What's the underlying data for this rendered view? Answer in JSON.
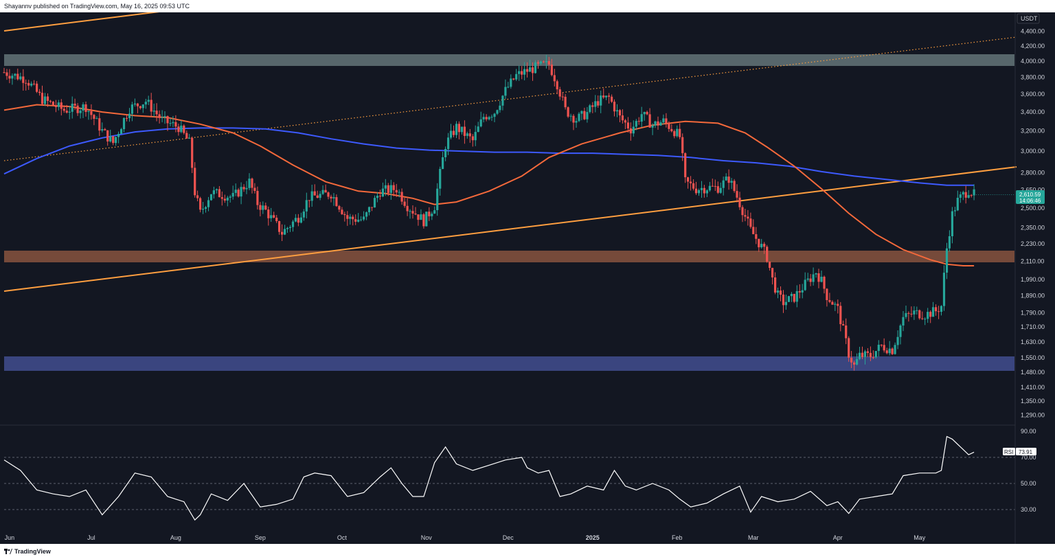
{
  "header": {
    "publisher_text": "Shayannv published on TradingView.com, May 16, 2025 09:53 UTC"
  },
  "footer": {
    "brand": "TradingView"
  },
  "colors": {
    "background": "#131722",
    "up_candle": "#26a69a",
    "down_candle": "#ef5350",
    "ma_100": "#f4693b",
    "ma_200": "#3d5afe",
    "trendline": "#ff9f40",
    "resistance_zone": "#8fa7a7",
    "support_zone_orange": "#c8754f",
    "support_zone_blue": "#4c5aa6",
    "rsi_line": "#ffffff",
    "price_badge": "#26a69a"
  },
  "chart_data": {
    "type": "candlestick",
    "symbol_currency": "USDT",
    "x_ticks": [
      "Jun",
      "Jul",
      "Aug",
      "Sep",
      "Oct",
      "Nov",
      "Dec",
      "2025",
      "Feb",
      "Mar",
      "Apr",
      "May"
    ],
    "x_range_days": [
      0,
      360
    ],
    "x_tick_days": [
      2,
      32,
      63,
      94,
      124,
      155,
      185,
      216,
      247,
      275,
      306,
      336
    ],
    "y_scale": "log",
    "y_ticks": [
      "4,400.00",
      "4,200.00",
      "4,000.00",
      "3,800.00",
      "3,600.00",
      "3,400.00",
      "3,200.00",
      "3,000.00",
      "2,800.00",
      "2,650.00",
      "2,500.00",
      "2,350.00",
      "2,230.00",
      "2,110.00",
      "1,990.00",
      "1,890.00",
      "1,790.00",
      "1,710.00",
      "1,630.00",
      "1,550.00",
      "1,480.00",
      "1,410.00",
      "1,350.00",
      "1,290.00"
    ],
    "current_price": "2,610.59",
    "countdown": "14:06:46",
    "close_path": [
      [
        0,
        3860
      ],
      [
        8,
        3780
      ],
      [
        14,
        3540
      ],
      [
        22,
        3420
      ],
      [
        30,
        3460
      ],
      [
        36,
        3200
      ],
      [
        40,
        3080
      ],
      [
        46,
        3440
      ],
      [
        52,
        3520
      ],
      [
        58,
        3310
      ],
      [
        64,
        3240
      ],
      [
        68,
        3080
      ],
      [
        70,
        2630
      ],
      [
        72,
        2460
      ],
      [
        76,
        2630
      ],
      [
        84,
        2590
      ],
      [
        90,
        2720
      ],
      [
        93,
        2540
      ],
      [
        96,
        2480
      ],
      [
        102,
        2310
      ],
      [
        108,
        2430
      ],
      [
        112,
        2590
      ],
      [
        120,
        2620
      ],
      [
        126,
        2420
      ],
      [
        132,
        2410
      ],
      [
        138,
        2640
      ],
      [
        144,
        2660
      ],
      [
        148,
        2520
      ],
      [
        154,
        2400
      ],
      [
        158,
        2520
      ],
      [
        162,
        3060
      ],
      [
        166,
        3240
      ],
      [
        172,
        3100
      ],
      [
        176,
        3350
      ],
      [
        180,
        3400
      ],
      [
        184,
        3640
      ],
      [
        188,
        3820
      ],
      [
        192,
        3880
      ],
      [
        196,
        3930
      ],
      [
        200,
        3960
      ],
      [
        203,
        3720
      ],
      [
        206,
        3420
      ],
      [
        210,
        3320
      ],
      [
        214,
        3390
      ],
      [
        218,
        3520
      ],
      [
        222,
        3560
      ],
      [
        226,
        3340
      ],
      [
        230,
        3220
      ],
      [
        232,
        3290
      ],
      [
        234,
        3380
      ],
      [
        238,
        3260
      ],
      [
        242,
        3300
      ],
      [
        246,
        3200
      ],
      [
        248,
        3140
      ],
      [
        250,
        2720
      ],
      [
        254,
        2660
      ],
      [
        258,
        2670
      ],
      [
        262,
        2670
      ],
      [
        266,
        2750
      ],
      [
        270,
        2540
      ],
      [
        274,
        2330
      ],
      [
        276,
        2270
      ],
      [
        278,
        2210
      ],
      [
        280,
        2140
      ],
      [
        282,
        1990
      ],
      [
        284,
        1890
      ],
      [
        286,
        1850
      ],
      [
        290,
        1880
      ],
      [
        294,
        1960
      ],
      [
        298,
        2040
      ],
      [
        300,
        1980
      ],
      [
        302,
        1890
      ],
      [
        306,
        1810
      ],
      [
        310,
        1570
      ],
      [
        312,
        1510
      ],
      [
        314,
        1560
      ],
      [
        318,
        1560
      ],
      [
        322,
        1610
      ],
      [
        326,
        1590
      ],
      [
        330,
        1760
      ],
      [
        334,
        1790
      ],
      [
        338,
        1780
      ],
      [
        342,
        1800
      ],
      [
        344,
        1830
      ],
      [
        346,
        2200
      ],
      [
        348,
        2450
      ],
      [
        350,
        2560
      ],
      [
        352,
        2610
      ],
      [
        354,
        2650
      ],
      [
        356,
        2611
      ]
    ],
    "ma_100": [
      [
        0,
        3420
      ],
      [
        12,
        3480
      ],
      [
        24,
        3460
      ],
      [
        36,
        3400
      ],
      [
        48,
        3360
      ],
      [
        60,
        3340
      ],
      [
        72,
        3270
      ],
      [
        84,
        3180
      ],
      [
        94,
        3050
      ],
      [
        106,
        2870
      ],
      [
        118,
        2720
      ],
      [
        130,
        2640
      ],
      [
        140,
        2620
      ],
      [
        150,
        2580
      ],
      [
        158,
        2530
      ],
      [
        166,
        2550
      ],
      [
        178,
        2640
      ],
      [
        190,
        2770
      ],
      [
        200,
        2940
      ],
      [
        212,
        3070
      ],
      [
        226,
        3180
      ],
      [
        238,
        3260
      ],
      [
        250,
        3300
      ],
      [
        262,
        3280
      ],
      [
        272,
        3180
      ],
      [
        280,
        3040
      ],
      [
        290,
        2860
      ],
      [
        300,
        2660
      ],
      [
        310,
        2460
      ],
      [
        320,
        2300
      ],
      [
        330,
        2190
      ],
      [
        340,
        2120
      ],
      [
        346,
        2090
      ],
      [
        352,
        2080
      ],
      [
        356,
        2080
      ]
    ],
    "ma_200": [
      [
        0,
        2790
      ],
      [
        12,
        2930
      ],
      [
        24,
        3050
      ],
      [
        36,
        3130
      ],
      [
        48,
        3190
      ],
      [
        60,
        3220
      ],
      [
        72,
        3230
      ],
      [
        84,
        3230
      ],
      [
        96,
        3220
      ],
      [
        108,
        3180
      ],
      [
        120,
        3120
      ],
      [
        132,
        3070
      ],
      [
        144,
        3030
      ],
      [
        156,
        3010
      ],
      [
        168,
        3000
      ],
      [
        180,
        2990
      ],
      [
        192,
        2990
      ],
      [
        204,
        2980
      ],
      [
        216,
        2980
      ],
      [
        228,
        2970
      ],
      [
        240,
        2960
      ],
      [
        252,
        2940
      ],
      [
        264,
        2910
      ],
      [
        276,
        2890
      ],
      [
        288,
        2860
      ],
      [
        300,
        2810
      ],
      [
        312,
        2770
      ],
      [
        324,
        2740
      ],
      [
        336,
        2710
      ],
      [
        346,
        2690
      ],
      [
        356,
        2690
      ]
    ],
    "rsi": {
      "label": "RSI",
      "value": "73.91",
      "y_ticks": [
        "90.00",
        "70.00",
        "50.00",
        "30.00"
      ],
      "path": [
        [
          0,
          68
        ],
        [
          6,
          60
        ],
        [
          12,
          45
        ],
        [
          18,
          42
        ],
        [
          24,
          40
        ],
        [
          30,
          45
        ],
        [
          36,
          26
        ],
        [
          42,
          40
        ],
        [
          48,
          58
        ],
        [
          54,
          55
        ],
        [
          60,
          40
        ],
        [
          66,
          36
        ],
        [
          70,
          22
        ],
        [
          72,
          26
        ],
        [
          76,
          42
        ],
        [
          82,
          37
        ],
        [
          88,
          50
        ],
        [
          94,
          32
        ],
        [
          100,
          34
        ],
        [
          106,
          38
        ],
        [
          110,
          55
        ],
        [
          114,
          58
        ],
        [
          120,
          56
        ],
        [
          126,
          40
        ],
        [
          132,
          43
        ],
        [
          138,
          55
        ],
        [
          142,
          62
        ],
        [
          146,
          50
        ],
        [
          150,
          40
        ],
        [
          154,
          40
        ],
        [
          158,
          66
        ],
        [
          162,
          78
        ],
        [
          166,
          65
        ],
        [
          172,
          60
        ],
        [
          178,
          64
        ],
        [
          184,
          68
        ],
        [
          190,
          70
        ],
        [
          192,
          62
        ],
        [
          196,
          58
        ],
        [
          200,
          60
        ],
        [
          204,
          40
        ],
        [
          208,
          42
        ],
        [
          214,
          48
        ],
        [
          220,
          45
        ],
        [
          224,
          60
        ],
        [
          228,
          48
        ],
        [
          232,
          45
        ],
        [
          238,
          50
        ],
        [
          244,
          45
        ],
        [
          248,
          38
        ],
        [
          252,
          32
        ],
        [
          258,
          35
        ],
        [
          264,
          42
        ],
        [
          270,
          48
        ],
        [
          274,
          28
        ],
        [
          278,
          40
        ],
        [
          284,
          36
        ],
        [
          290,
          38
        ],
        [
          296,
          44
        ],
        [
          302,
          33
        ],
        [
          306,
          36
        ],
        [
          310,
          27
        ],
        [
          314,
          38
        ],
        [
          320,
          40
        ],
        [
          326,
          42
        ],
        [
          330,
          56
        ],
        [
          336,
          58
        ],
        [
          342,
          58
        ],
        [
          344,
          60
        ],
        [
          346,
          86
        ],
        [
          348,
          84
        ],
        [
          352,
          76
        ],
        [
          354,
          72
        ],
        [
          356,
          74
        ]
      ]
    }
  }
}
